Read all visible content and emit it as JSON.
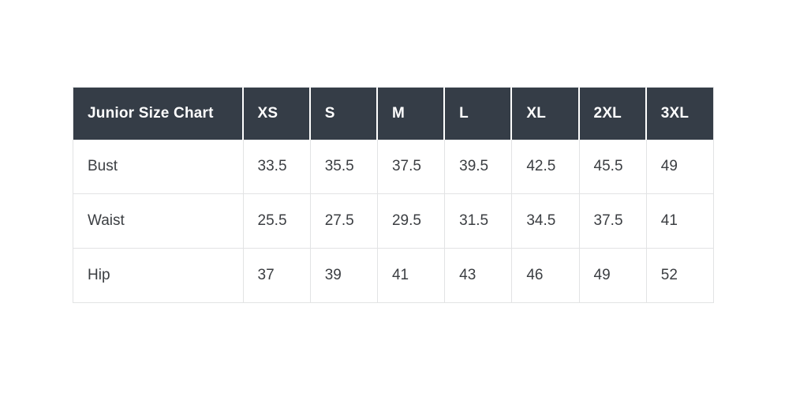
{
  "colors": {
    "header_bg": "#353d47",
    "header_text": "#ffffff",
    "body_text": "#3b3e42",
    "border": "#e2e3e4",
    "page_bg": "#ffffff"
  },
  "chart_data": {
    "type": "table",
    "title": "Junior Size Chart",
    "columns": [
      "XS",
      "S",
      "M",
      "L",
      "XL",
      "2XL",
      "3XL"
    ],
    "rows": [
      {
        "label": "Bust",
        "values": [
          "33.5",
          "35.5",
          "37.5",
          "39.5",
          "42.5",
          "45.5",
          "49"
        ]
      },
      {
        "label": "Waist",
        "values": [
          "25.5",
          "27.5",
          "29.5",
          "31.5",
          "34.5",
          "37.5",
          "41"
        ]
      },
      {
        "label": "Hip",
        "values": [
          "37",
          "39",
          "41",
          "43",
          "46",
          "49",
          "52"
        ]
      }
    ],
    "layout": {
      "header_style": "dark",
      "grid": true,
      "first_column_is_row_labels": true
    }
  }
}
